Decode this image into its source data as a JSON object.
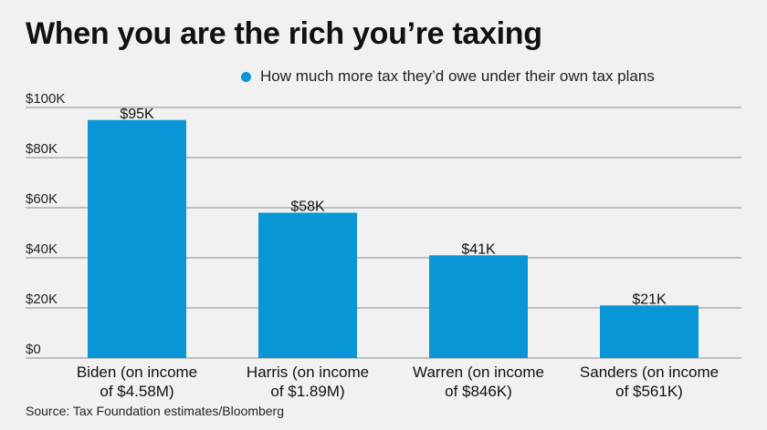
{
  "title": "When you are the rich you’re taxing",
  "legend": {
    "label": "How much more tax they’d owe under their own tax plans",
    "color": "#0a96d6"
  },
  "source": "Source: Tax Foundation estimates/Bloomberg",
  "chart_data": {
    "type": "bar",
    "categories": [
      [
        "Biden (on income",
        "of $4.58M)"
      ],
      [
        "Harris (on income",
        "of $1.89M)"
      ],
      [
        "Warren (on income",
        "of $846K)"
      ],
      [
        "Sanders (on income",
        "of $561K)"
      ]
    ],
    "values": [
      95000,
      58000,
      41000,
      21000
    ],
    "data_labels": [
      "$95K",
      "$58K",
      "$41K",
      "$21K"
    ],
    "y_ticks": [
      0,
      20000,
      40000,
      60000,
      80000,
      100000
    ],
    "y_tick_labels": [
      "$0",
      "$20K",
      "$40K",
      "$60K",
      "$80K",
      "$100K"
    ],
    "ylim": [
      0,
      100000
    ],
    "grid": true,
    "bar_color": "#0a96d6",
    "grid_color": "#8a8a8a",
    "legend_position": "top-right"
  }
}
